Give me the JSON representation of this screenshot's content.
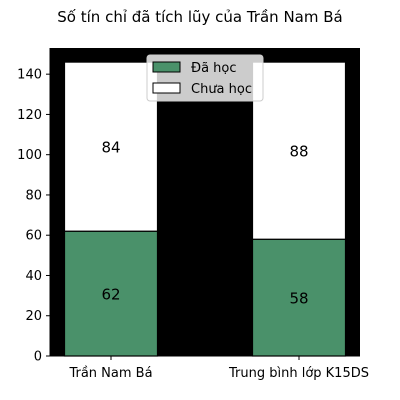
{
  "chart_data": {
    "type": "bar",
    "stacked": true,
    "title": "Số tín chỉ đã tích lũy của Trần Nam Bá",
    "categories": [
      "Trần Nam Bá",
      "Trung bình lớp K15DS"
    ],
    "series": [
      {
        "name": "Đã học",
        "values": [
          62,
          58
        ],
        "color": "#4a916a"
      },
      {
        "name": "Chưa học",
        "values": [
          84,
          88
        ],
        "color": "#ffffff"
      }
    ],
    "totals": [
      146,
      146
    ],
    "ylim": [
      0,
      153
    ],
    "yticks": [
      0,
      20,
      40,
      60,
      80,
      100,
      120,
      140
    ],
    "xlabel": "",
    "ylabel": "",
    "grid": false,
    "legend_position": "top-center",
    "background_color": "#000000"
  }
}
